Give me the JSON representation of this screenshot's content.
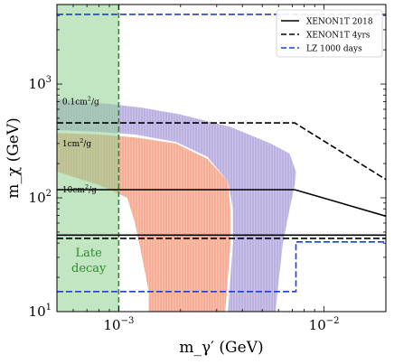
{
  "chart_data": {
    "type": "area",
    "x_scale": "log",
    "y_scale": "log",
    "xlim": [
      0.0005,
      0.02
    ],
    "ylim": [
      10,
      5000
    ],
    "xlabel": "m_γ′ (GeV)",
    "ylabel": "m_χ (GeV)",
    "x_ticks": [
      {
        "value": 0.001,
        "base": "10",
        "exp": "−3"
      },
      {
        "value": 0.01,
        "base": "10",
        "exp": "−2"
      }
    ],
    "y_ticks": [
      {
        "value": 10,
        "base": "10",
        "exp": "1"
      },
      {
        "value": 100,
        "base": "10",
        "exp": "2"
      },
      {
        "value": 1000,
        "base": "10",
        "exp": "3"
      }
    ],
    "late_decay": {
      "label_lines": [
        "Late",
        "decay"
      ],
      "x_range": [
        0.0005,
        0.001
      ],
      "fill": "#8fcf8f",
      "edge": "#2e8b2e"
    },
    "regions": [
      {
        "name": "0.1cm²/g",
        "label_base": "0.1cm",
        "label_sup": "2",
        "label_tail": "/g",
        "color": "#b8aee0",
        "label_at": [
          0.000515,
          700
        ],
        "polygon": [
          [
            0.0005,
            740
          ],
          [
            0.0007,
            690
          ],
          [
            0.0009,
            670
          ],
          [
            0.0013,
            620
          ],
          [
            0.002,
            540
          ],
          [
            0.0035,
            420
          ],
          [
            0.0055,
            300
          ],
          [
            0.0068,
            245
          ],
          [
            0.0073,
            170
          ],
          [
            0.0072,
            130
          ],
          [
            0.0068,
            80
          ],
          [
            0.0063,
            40
          ],
          [
            0.006,
            18
          ],
          [
            0.0058,
            10
          ],
          [
            0.0034,
            10
          ],
          [
            0.0035,
            20
          ],
          [
            0.0036,
            40
          ],
          [
            0.0036,
            80
          ],
          [
            0.0034,
            140
          ],
          [
            0.0027,
            230
          ],
          [
            0.0019,
            310
          ],
          [
            0.0012,
            360
          ],
          [
            0.0008,
            380
          ],
          [
            0.0005,
            395
          ]
        ]
      },
      {
        "name": "1cm²/g",
        "label_base": "1cm",
        "label_sup": "2",
        "label_tail": "/g",
        "color": "#f5aa90",
        "label_at": [
          0.000515,
          300
        ],
        "polygon": [
          [
            0.0005,
            370
          ],
          [
            0.0008,
            360
          ],
          [
            0.0012,
            340
          ],
          [
            0.0019,
            300
          ],
          [
            0.0027,
            220
          ],
          [
            0.0034,
            140
          ],
          [
            0.0035,
            80
          ],
          [
            0.0035,
            40
          ],
          [
            0.0034,
            20
          ],
          [
            0.0033,
            10
          ],
          [
            0.0014,
            10
          ],
          [
            0.0014,
            15
          ],
          [
            0.0013,
            30
          ],
          [
            0.0012,
            60
          ],
          [
            0.0011,
            100
          ],
          [
            0.0008,
            130
          ],
          [
            0.0005,
            170
          ]
        ]
      },
      {
        "name": "10cm²/g",
        "label_base": "10cm",
        "label_sup": "2",
        "label_tail": "/g",
        "color": "none",
        "label_at": [
          0.000515,
          118
        ],
        "polygon": []
      }
    ],
    "series": [
      {
        "name": "XENON1T 2018",
        "color": "#000000",
        "dash": "solid",
        "points": [
          [
            0.0005,
            118
          ],
          [
            0.0072,
            118
          ],
          [
            0.02,
            69
          ]
        ]
      },
      {
        "name": "XENON1T 4yrs",
        "color": "#000000",
        "dash": "dashed",
        "points": [
          [
            0.0005,
            455
          ],
          [
            0.0072,
            455
          ],
          [
            0.02,
            145
          ]
        ]
      },
      {
        "name": "LZ 1000 days",
        "color": "#1a3fe0",
        "dash": "dashed",
        "points": [
          [
            0.0005,
            4100
          ],
          [
            0.02,
            4100
          ]
        ]
      }
    ],
    "extra_lines": [
      {
        "of": "XENON1T 2018",
        "color": "#000000",
        "dash": "solid",
        "points": [
          [
            0.0005,
            47
          ],
          [
            0.02,
            47
          ]
        ]
      },
      {
        "of": "XENON1T 4yrs",
        "color": "#000000",
        "dash": "dashed",
        "points": [
          [
            0.0005,
            44
          ],
          [
            0.02,
            44
          ]
        ]
      },
      {
        "of": "LZ 1000 days",
        "color": "#1a3fe0",
        "dash": "dashed",
        "points": [
          [
            0.0005,
            15
          ],
          [
            0.0073,
            15
          ],
          [
            0.0073,
            41
          ],
          [
            0.02,
            41
          ]
        ]
      }
    ],
    "legend_position": "top-right",
    "grid": false
  }
}
